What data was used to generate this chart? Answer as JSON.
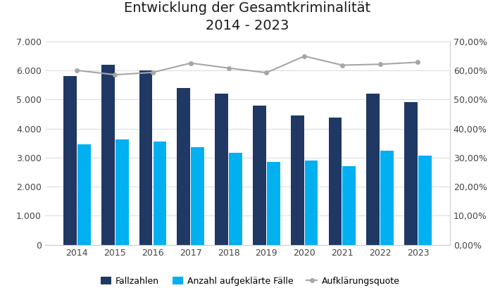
{
  "title": "Entwicklung der Gesamtkriminalität\n2014 - 2023",
  "years": [
    2014,
    2015,
    2016,
    2017,
    2018,
    2019,
    2020,
    2021,
    2022,
    2023
  ],
  "fallzahlen": [
    5800,
    6200,
    6000,
    5400,
    5200,
    4800,
    4450,
    4370,
    5200,
    4900
  ],
  "aufgeklaerte": [
    3450,
    3620,
    3560,
    3370,
    3160,
    2840,
    2890,
    2700,
    3230,
    3070
  ],
  "aufklaerungsquote": [
    0.6,
    0.585,
    0.593,
    0.625,
    0.608,
    0.592,
    0.649,
    0.618,
    0.621,
    0.628
  ],
  "bar_color_fall": "#1f3864",
  "bar_color_aufgekl": "#00b0f0",
  "line_color": "#a6a6a6",
  "background_color": "#ffffff",
  "ylim_left": [
    0,
    7000
  ],
  "ylim_right": [
    0.0,
    0.7
  ],
  "ylabel_left_ticks": [
    0,
    1000,
    2000,
    3000,
    4000,
    5000,
    6000,
    7000
  ],
  "ylabel_right_ticks": [
    0.0,
    0.1,
    0.2,
    0.3,
    0.4,
    0.5,
    0.6,
    0.7
  ],
  "legend_labels": [
    "Fallzahlen",
    "Anzahl aufgeklärte Fälle",
    "Aufklärungsquote"
  ],
  "title_fontsize": 14,
  "tick_fontsize": 9,
  "legend_fontsize": 9,
  "bar_width": 0.35
}
